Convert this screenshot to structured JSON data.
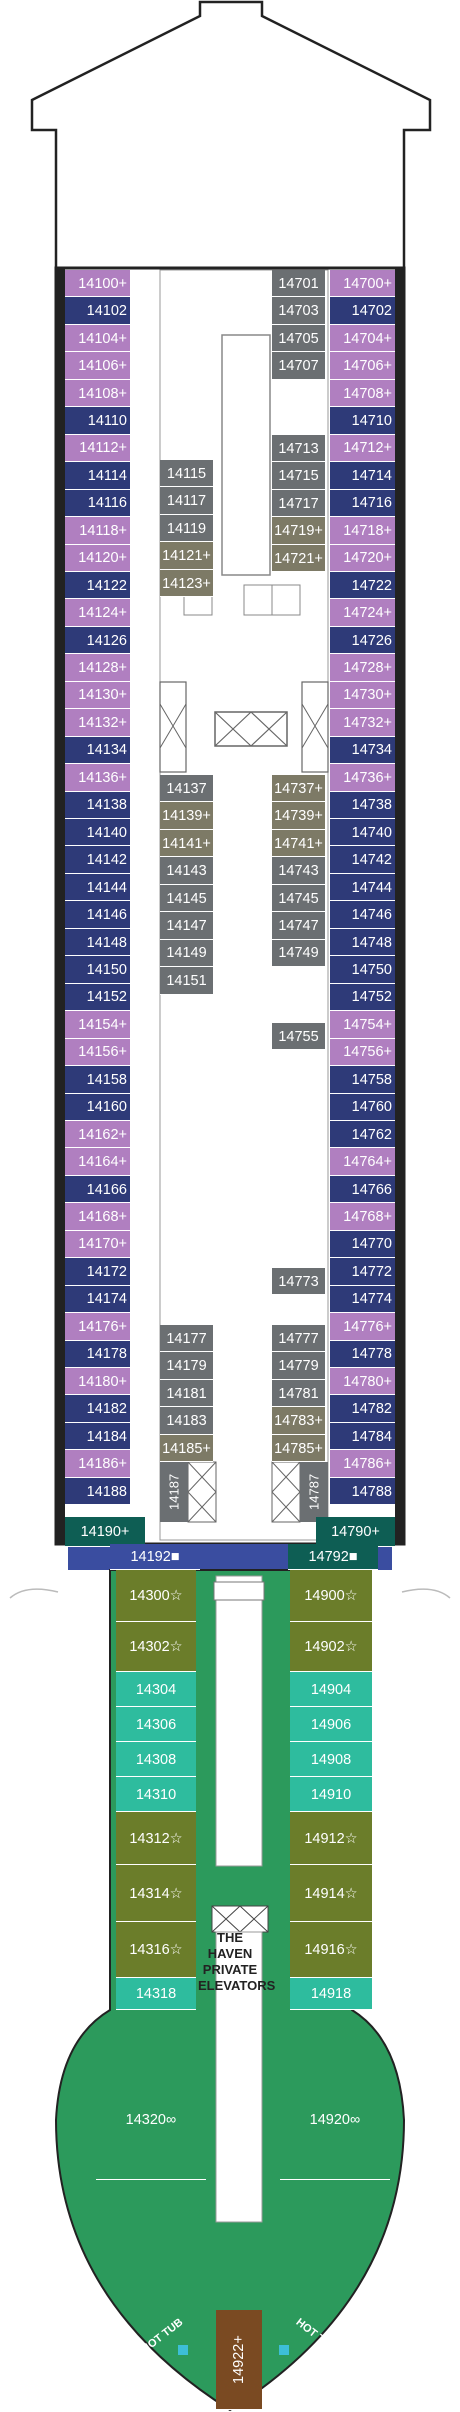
{
  "colors": {
    "balcony": "#b07fc0",
    "oceanview": "#2e3a78",
    "inside": "#6b6f72",
    "inside_tan": "#7d7a66",
    "spa_teal": "#2ebc9e",
    "haven_olive": "#6b7d2a",
    "haven_deep": "#2c9a5c",
    "haven_brown": "#7a4a22",
    "suite_teal": "#0e5e54",
    "hull": "#222222",
    "forward_blue": "#3a4da0",
    "tub": "#3dbed6"
  },
  "haven_label": [
    "THE HAVEN",
    "PRIVATE",
    "ELEVATORS"
  ],
  "hot_tub": "HOT TUB",
  "left_cabins": [
    {
      "n": "14100",
      "s": "+",
      "c": "balcony"
    },
    {
      "n": "14102",
      "s": "",
      "c": "oceanview"
    },
    {
      "n": "14104",
      "s": "+",
      "c": "balcony"
    },
    {
      "n": "14106",
      "s": "+",
      "c": "balcony"
    },
    {
      "n": "14108",
      "s": "+",
      "c": "balcony"
    },
    {
      "n": "14110",
      "s": "",
      "c": "oceanview"
    },
    {
      "n": "14112",
      "s": "+",
      "c": "balcony"
    },
    {
      "n": "14114",
      "s": "",
      "c": "oceanview"
    },
    {
      "n": "14116",
      "s": "",
      "c": "oceanview"
    },
    {
      "n": "14118",
      "s": "+",
      "c": "balcony"
    },
    {
      "n": "14120",
      "s": "+",
      "c": "balcony"
    },
    {
      "n": "14122",
      "s": "",
      "c": "oceanview"
    },
    {
      "n": "14124",
      "s": "+",
      "c": "balcony"
    },
    {
      "n": "14126",
      "s": "",
      "c": "oceanview"
    },
    {
      "n": "14128",
      "s": "+",
      "c": "balcony"
    },
    {
      "n": "14130",
      "s": "+",
      "c": "balcony"
    },
    {
      "n": "14132",
      "s": "+",
      "c": "balcony"
    },
    {
      "n": "14134",
      "s": "",
      "c": "oceanview"
    },
    {
      "n": "14136",
      "s": "+",
      "c": "balcony"
    },
    {
      "n": "14138",
      "s": "",
      "c": "oceanview"
    },
    {
      "n": "14140",
      "s": "",
      "c": "oceanview"
    },
    {
      "n": "14142",
      "s": "",
      "c": "oceanview"
    },
    {
      "n": "14144",
      "s": "",
      "c": "oceanview"
    },
    {
      "n": "14146",
      "s": "",
      "c": "oceanview"
    },
    {
      "n": "14148",
      "s": "",
      "c": "oceanview"
    },
    {
      "n": "14150",
      "s": "",
      "c": "oceanview"
    },
    {
      "n": "14152",
      "s": "",
      "c": "oceanview"
    },
    {
      "n": "14154",
      "s": "+",
      "c": "balcony"
    },
    {
      "n": "14156",
      "s": "+",
      "c": "balcony"
    },
    {
      "n": "14158",
      "s": "",
      "c": "oceanview"
    },
    {
      "n": "14160",
      "s": "",
      "c": "oceanview"
    },
    {
      "n": "14162",
      "s": "+",
      "c": "balcony"
    },
    {
      "n": "14164",
      "s": "+",
      "c": "balcony"
    },
    {
      "n": "14166",
      "s": "",
      "c": "oceanview"
    },
    {
      "n": "14168",
      "s": "+",
      "c": "balcony"
    },
    {
      "n": "14170",
      "s": "+",
      "c": "balcony"
    },
    {
      "n": "14172",
      "s": "",
      "c": "oceanview"
    },
    {
      "n": "14174",
      "s": "",
      "c": "oceanview"
    },
    {
      "n": "14176",
      "s": "+",
      "c": "balcony"
    },
    {
      "n": "14178",
      "s": "",
      "c": "oceanview"
    },
    {
      "n": "14180",
      "s": "+",
      "c": "balcony"
    },
    {
      "n": "14182",
      "s": "",
      "c": "oceanview"
    },
    {
      "n": "14184",
      "s": "",
      "c": "oceanview"
    },
    {
      "n": "14186",
      "s": "+",
      "c": "balcony"
    },
    {
      "n": "14188",
      "s": "",
      "c": "oceanview"
    }
  ],
  "right_cabins": [
    {
      "n": "14700",
      "s": "+",
      "c": "balcony"
    },
    {
      "n": "14702",
      "s": "",
      "c": "oceanview"
    },
    {
      "n": "14704",
      "s": "+",
      "c": "balcony"
    },
    {
      "n": "14706",
      "s": "+",
      "c": "balcony"
    },
    {
      "n": "14708",
      "s": "+",
      "c": "balcony"
    },
    {
      "n": "14710",
      "s": "",
      "c": "oceanview"
    },
    {
      "n": "14712",
      "s": "+",
      "c": "balcony"
    },
    {
      "n": "14714",
      "s": "",
      "c": "oceanview"
    },
    {
      "n": "14716",
      "s": "",
      "c": "oceanview"
    },
    {
      "n": "14718",
      "s": "+",
      "c": "balcony"
    },
    {
      "n": "14720",
      "s": "+",
      "c": "balcony"
    },
    {
      "n": "14722",
      "s": "",
      "c": "oceanview"
    },
    {
      "n": "14724",
      "s": "+",
      "c": "balcony"
    },
    {
      "n": "14726",
      "s": "",
      "c": "oceanview"
    },
    {
      "n": "14728",
      "s": "+",
      "c": "balcony"
    },
    {
      "n": "14730",
      "s": "+",
      "c": "balcony"
    },
    {
      "n": "14732",
      "s": "+",
      "c": "balcony"
    },
    {
      "n": "14734",
      "s": "",
      "c": "oceanview"
    },
    {
      "n": "14736",
      "s": "+",
      "c": "balcony"
    },
    {
      "n": "14738",
      "s": "",
      "c": "oceanview"
    },
    {
      "n": "14740",
      "s": "",
      "c": "oceanview"
    },
    {
      "n": "14742",
      "s": "",
      "c": "oceanview"
    },
    {
      "n": "14744",
      "s": "",
      "c": "oceanview"
    },
    {
      "n": "14746",
      "s": "",
      "c": "oceanview"
    },
    {
      "n": "14748",
      "s": "",
      "c": "oceanview"
    },
    {
      "n": "14750",
      "s": "",
      "c": "oceanview"
    },
    {
      "n": "14752",
      "s": "",
      "c": "oceanview"
    },
    {
      "n": "14754",
      "s": "+",
      "c": "balcony"
    },
    {
      "n": "14756",
      "s": "+",
      "c": "balcony"
    },
    {
      "n": "14758",
      "s": "",
      "c": "oceanview"
    },
    {
      "n": "14760",
      "s": "",
      "c": "oceanview"
    },
    {
      "n": "14762",
      "s": "",
      "c": "oceanview"
    },
    {
      "n": "14764",
      "s": "+",
      "c": "balcony"
    },
    {
      "n": "14766",
      "s": "",
      "c": "oceanview"
    },
    {
      "n": "14768",
      "s": "+",
      "c": "balcony"
    },
    {
      "n": "14770",
      "s": "",
      "c": "oceanview"
    },
    {
      "n": "14772",
      "s": "",
      "c": "oceanview"
    },
    {
      "n": "14774",
      "s": "",
      "c": "oceanview"
    },
    {
      "n": "14776",
      "s": "+",
      "c": "balcony"
    },
    {
      "n": "14778",
      "s": "",
      "c": "oceanview"
    },
    {
      "n": "14780",
      "s": "+",
      "c": "balcony"
    },
    {
      "n": "14782",
      "s": "",
      "c": "oceanview"
    },
    {
      "n": "14784",
      "s": "",
      "c": "oceanview"
    },
    {
      "n": "14786",
      "s": "+",
      "c": "balcony"
    },
    {
      "n": "14788",
      "s": "",
      "c": "oceanview"
    }
  ],
  "inner_left_a": [
    {
      "n": "14115",
      "s": "",
      "c": "inside"
    },
    {
      "n": "14117",
      "s": "",
      "c": "inside"
    },
    {
      "n": "14119",
      "s": "",
      "c": "inside"
    },
    {
      "n": "14121",
      "s": "+",
      "c": "inside_tan"
    },
    {
      "n": "14123",
      "s": "+",
      "c": "inside_tan"
    }
  ],
  "inner_left_b": [
    {
      "n": "14137",
      "s": "",
      "c": "inside"
    },
    {
      "n": "14139",
      "s": "+",
      "c": "inside_tan"
    },
    {
      "n": "14141",
      "s": "+",
      "c": "inside_tan"
    },
    {
      "n": "14143",
      "s": "",
      "c": "inside"
    },
    {
      "n": "14145",
      "s": "",
      "c": "inside"
    },
    {
      "n": "14147",
      "s": "",
      "c": "inside"
    },
    {
      "n": "14149",
      "s": "",
      "c": "inside"
    },
    {
      "n": "14151",
      "s": "",
      "c": "inside"
    }
  ],
  "inner_left_c": [
    {
      "n": "14177",
      "s": "",
      "c": "inside"
    },
    {
      "n": "14179",
      "s": "",
      "c": "inside"
    },
    {
      "n": "14181",
      "s": "",
      "c": "inside"
    },
    {
      "n": "14183",
      "s": "",
      "c": "inside"
    },
    {
      "n": "14185",
      "s": "+",
      "c": "inside_tan"
    }
  ],
  "inner_right_a": [
    {
      "n": "14701",
      "s": "",
      "c": "inside"
    },
    {
      "n": "14703",
      "s": "",
      "c": "inside"
    },
    {
      "n": "14705",
      "s": "",
      "c": "inside"
    },
    {
      "n": "14707",
      "s": "",
      "c": "inside"
    }
  ],
  "inner_right_b": [
    {
      "n": "14713",
      "s": "",
      "c": "inside"
    },
    {
      "n": "14715",
      "s": "",
      "c": "inside"
    },
    {
      "n": "14717",
      "s": "",
      "c": "inside"
    },
    {
      "n": "14719",
      "s": "+",
      "c": "inside_tan"
    },
    {
      "n": "14721",
      "s": "+",
      "c": "inside_tan"
    }
  ],
  "inner_right_c": [
    {
      "n": "14737",
      "s": "+",
      "c": "inside_tan"
    },
    {
      "n": "14739",
      "s": "+",
      "c": "inside_tan"
    },
    {
      "n": "14741",
      "s": "+",
      "c": "inside_tan"
    },
    {
      "n": "14743",
      "s": "",
      "c": "inside"
    },
    {
      "n": "14745",
      "s": "",
      "c": "inside"
    },
    {
      "n": "14747",
      "s": "",
      "c": "inside"
    },
    {
      "n": "14749",
      "s": "",
      "c": "inside"
    }
  ],
  "inner_right_single": {
    "n": "14755",
    "s": "",
    "c": "inside"
  },
  "inner_right_single2": {
    "n": "14773",
    "s": "",
    "c": "inside"
  },
  "inner_right_d": [
    {
      "n": "14777",
      "s": "",
      "c": "inside"
    },
    {
      "n": "14779",
      "s": "",
      "c": "inside"
    },
    {
      "n": "14781",
      "s": "",
      "c": "inside"
    },
    {
      "n": "14783",
      "s": "+",
      "c": "inside_tan"
    },
    {
      "n": "14785",
      "s": "+",
      "c": "inside_tan"
    }
  ],
  "vertical_cabins": [
    {
      "n": "14187",
      "c": "inside"
    },
    {
      "n": "14787",
      "c": "inside"
    }
  ],
  "suites": [
    {
      "n": "14190",
      "s": "+",
      "c": "suite_teal"
    },
    {
      "n": "14790",
      "s": "+",
      "c": "suite_teal"
    }
  ],
  "forward_cabins": [
    {
      "n": "14192",
      "s": "■",
      "c": "forward_blue"
    },
    {
      "n": "14792",
      "s": "■",
      "c": "suite_teal"
    }
  ],
  "haven_left": [
    {
      "n": "14300",
      "s": "☆",
      "c": "haven_olive"
    },
    {
      "n": "14302",
      "s": "☆",
      "c": "haven_olive"
    },
    {
      "n": "14304",
      "s": "",
      "c": "spa_teal"
    },
    {
      "n": "14306",
      "s": "",
      "c": "spa_teal"
    },
    {
      "n": "14308",
      "s": "",
      "c": "spa_teal"
    },
    {
      "n": "14310",
      "s": "",
      "c": "spa_teal"
    },
    {
      "n": "14312",
      "s": "☆",
      "c": "haven_olive"
    },
    {
      "n": "14314",
      "s": "☆",
      "c": "haven_olive"
    },
    {
      "n": "14316",
      "s": "☆",
      "c": "haven_olive"
    },
    {
      "n": "14318",
      "s": "",
      "c": "spa_teal"
    }
  ],
  "haven_right": [
    {
      "n": "14900",
      "s": "☆",
      "c": "haven_olive"
    },
    {
      "n": "14902",
      "s": "☆",
      "c": "haven_olive"
    },
    {
      "n": "14904",
      "s": "",
      "c": "spa_teal"
    },
    {
      "n": "14906",
      "s": "",
      "c": "spa_teal"
    },
    {
      "n": "14908",
      "s": "",
      "c": "spa_teal"
    },
    {
      "n": "14910",
      "s": "",
      "c": "spa_teal"
    },
    {
      "n": "14912",
      "s": "☆",
      "c": "haven_olive"
    },
    {
      "n": "14914",
      "s": "☆",
      "c": "haven_olive"
    },
    {
      "n": "14916",
      "s": "☆",
      "c": "haven_olive"
    },
    {
      "n": "14918",
      "s": "",
      "c": "spa_teal"
    }
  ],
  "bow_cabins": [
    {
      "n": "14320",
      "s": "∞",
      "c": "haven_deep"
    },
    {
      "n": "14920",
      "s": "∞",
      "c": "haven_deep"
    }
  ],
  "bow_center": {
    "n": "14922",
    "s": "+",
    "c": "haven_brown"
  }
}
